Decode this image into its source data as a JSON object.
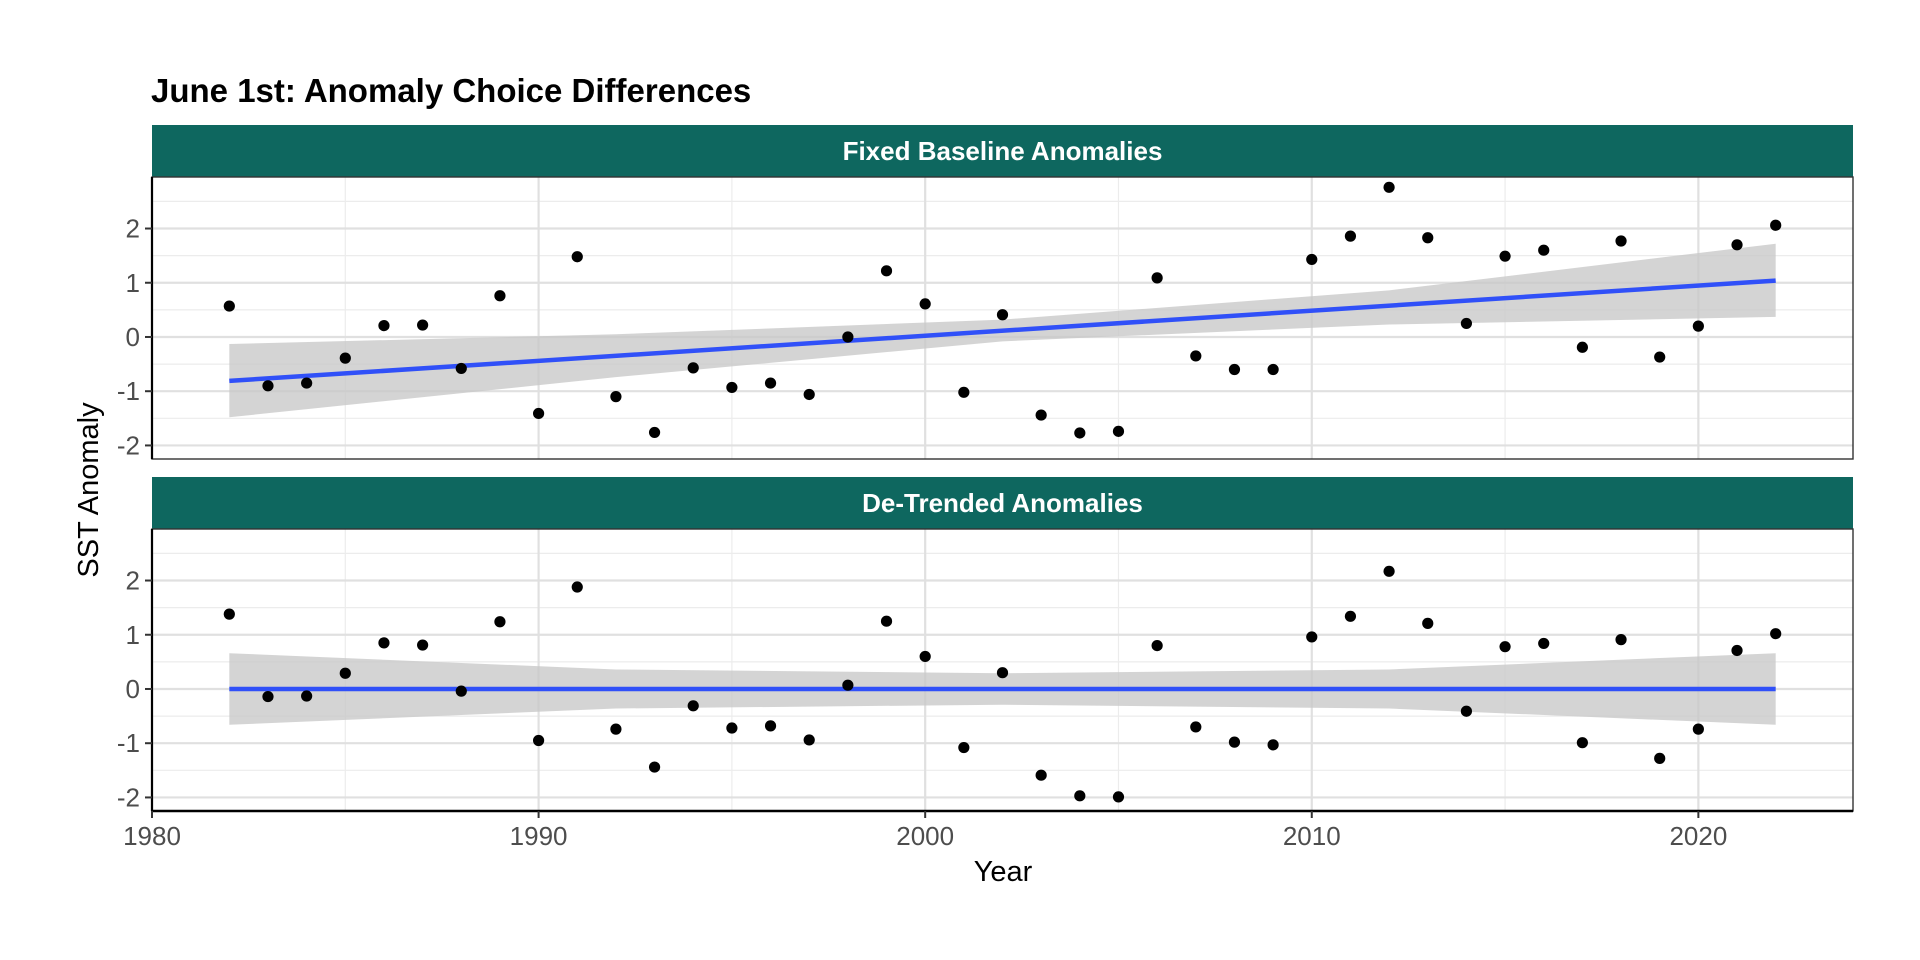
{
  "chart_data": {
    "type": "scatter",
    "title": "June 1st: Anomaly Choice Differences",
    "xlabel": "Year",
    "ylabel": "SST Anomaly",
    "xlim": [
      1980,
      2024
    ],
    "x_ticks": [
      1980,
      1990,
      2000,
      2010,
      2020
    ],
    "grid": true,
    "colors": {
      "strip": "#0e675f",
      "trend_line": "#3050f8",
      "ribbon": "#c8c8c8",
      "points": "#000000"
    },
    "panels": [
      {
        "strip_label": "Fixed Baseline Anomalies",
        "ylim": [
          -2.25,
          2.95
        ],
        "y_ticks": [
          -2,
          -1,
          0,
          1,
          2
        ],
        "x": [
          1982,
          1983,
          1984,
          1985,
          1986,
          1987,
          1988,
          1989,
          1990,
          1991,
          1992,
          1993,
          1994,
          1995,
          1996,
          1997,
          1998,
          1999,
          2000,
          2001,
          2002,
          2003,
          2004,
          2005,
          2006,
          2007,
          2008,
          2009,
          2010,
          2011,
          2012,
          2013,
          2014,
          2015,
          2016,
          2017,
          2018,
          2019,
          2020,
          2021,
          2022
        ],
        "y": [
          0.57,
          -0.9,
          -0.85,
          -0.39,
          0.21,
          0.22,
          -0.58,
          0.76,
          -1.41,
          1.48,
          -1.1,
          -1.76,
          -0.57,
          -0.93,
          -0.85,
          -1.06,
          0.0,
          1.22,
          0.61,
          -1.02,
          0.41,
          -1.44,
          -1.77,
          -1.74,
          1.09,
          -0.35,
          -0.6,
          -0.6,
          1.43,
          1.86,
          2.76,
          1.83,
          0.25,
          1.49,
          1.6,
          -0.19,
          1.77,
          -0.37,
          0.2,
          1.7,
          2.06
        ],
        "trend": {
          "x": [
            1982,
            2022
          ],
          "y": [
            -0.81,
            1.04
          ]
        },
        "band": {
          "x": [
            1982,
            1992,
            2002,
            2012,
            2022
          ],
          "lower": [
            -1.48,
            -0.74,
            -0.08,
            0.23,
            0.37
          ],
          "upper": [
            -0.13,
            0.05,
            0.32,
            0.86,
            1.72
          ]
        }
      },
      {
        "strip_label": "De-Trended Anomalies",
        "ylim": [
          -2.25,
          2.95
        ],
        "y_ticks": [
          -2,
          -1,
          0,
          1,
          2
        ],
        "x": [
          1982,
          1983,
          1984,
          1985,
          1986,
          1987,
          1988,
          1989,
          1990,
          1991,
          1992,
          1993,
          1994,
          1995,
          1996,
          1997,
          1998,
          1999,
          2000,
          2001,
          2002,
          2003,
          2004,
          2005,
          2006,
          2007,
          2008,
          2009,
          2010,
          2011,
          2012,
          2013,
          2014,
          2015,
          2016,
          2017,
          2018,
          2019,
          2020,
          2021,
          2022
        ],
        "y": [
          1.38,
          -0.14,
          -0.13,
          0.29,
          0.85,
          0.81,
          -0.04,
          1.24,
          -0.95,
          1.88,
          -0.74,
          -1.44,
          -0.31,
          -0.72,
          -0.68,
          -0.94,
          0.07,
          1.25,
          0.6,
          -1.08,
          0.3,
          -1.59,
          -1.97,
          -1.99,
          0.8,
          -0.7,
          -0.98,
          -1.03,
          0.96,
          1.34,
          2.17,
          1.21,
          -0.41,
          0.78,
          0.84,
          -0.99,
          0.91,
          -1.28,
          -0.74,
          0.71,
          1.02
        ],
        "trend": {
          "x": [
            1982,
            2022
          ],
          "y": [
            0.0,
            0.0
          ]
        },
        "band": {
          "x": [
            1982,
            1992,
            2002,
            2012,
            2022
          ],
          "lower": [
            -0.66,
            -0.36,
            -0.29,
            -0.36,
            -0.66
          ],
          "upper": [
            0.66,
            0.36,
            0.29,
            0.36,
            0.66
          ]
        }
      }
    ]
  }
}
